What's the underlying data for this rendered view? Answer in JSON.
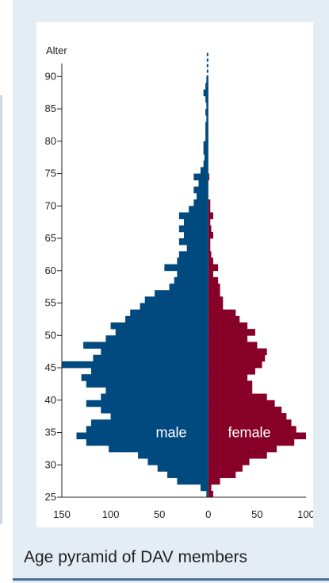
{
  "caption": "Age pyramid of DAV members",
  "colors": {
    "male": "#004a80",
    "female": "#860028",
    "panel": "#e4ecf4",
    "rule": "#4a6f96"
  },
  "chart_data": {
    "type": "bar",
    "orientation": "horizontal-pyramid",
    "ylabel": "Alter",
    "xlabel": "",
    "title": "",
    "ylim": [
      25,
      92
    ],
    "xlim": [
      -150,
      100
    ],
    "y_ticks": [
      25,
      30,
      35,
      40,
      45,
      50,
      55,
      60,
      65,
      70,
      75,
      80,
      85,
      90
    ],
    "x_ticks": [
      {
        "value": -150,
        "label": "150"
      },
      {
        "value": -100,
        "label": "100"
      },
      {
        "value": -50,
        "label": "50"
      },
      {
        "value": 0,
        "label": "0"
      },
      {
        "value": 50,
        "label": "50"
      },
      {
        "value": 100,
        "label": "100"
      }
    ],
    "ages": [
      26,
      27,
      28,
      29,
      30,
      31,
      32,
      33,
      34,
      35,
      36,
      37,
      38,
      39,
      40,
      41,
      42,
      43,
      44,
      45,
      46,
      47,
      48,
      49,
      50,
      51,
      52,
      53,
      54,
      55,
      56,
      57,
      58,
      59,
      60,
      61,
      62,
      63,
      64,
      65,
      66,
      67,
      68,
      69,
      70,
      71,
      72,
      73,
      74,
      75,
      76,
      77,
      78,
      79,
      80,
      81,
      82,
      83,
      84,
      85,
      86,
      87,
      88,
      89,
      90
    ],
    "series": [
      {
        "name": "male",
        "values": [
          2,
          8,
          32,
          42,
          52,
          62,
          72,
          102,
          125,
          135,
          125,
          120,
          100,
          110,
          125,
          110,
          105,
          125,
          130,
          120,
          150,
          118,
          110,
          128,
          105,
          95,
          100,
          85,
          80,
          70,
          65,
          55,
          40,
          35,
          32,
          45,
          32,
          30,
          22,
          30,
          25,
          30,
          25,
          30,
          20,
          15,
          12,
          15,
          10,
          15,
          8,
          5,
          4,
          5,
          5,
          3,
          3,
          3,
          2,
          3,
          2,
          3,
          5,
          3,
          2
        ]
      },
      {
        "name": "female",
        "values": [
          5,
          3,
          12,
          28,
          35,
          42,
          60,
          70,
          88,
          100,
          90,
          85,
          80,
          75,
          68,
          60,
          45,
          45,
          40,
          48,
          55,
          58,
          60,
          50,
          40,
          48,
          40,
          32,
          28,
          15,
          15,
          12,
          12,
          10,
          5,
          10,
          5,
          3,
          2,
          2,
          5,
          3,
          2,
          5,
          2,
          2,
          0,
          0,
          0,
          1,
          0,
          0,
          0,
          0,
          0,
          0,
          0,
          0,
          0,
          0,
          0,
          0,
          0,
          0,
          0
        ]
      }
    ],
    "dashed_top": {
      "from_age": 88,
      "to_age": 94
    }
  }
}
